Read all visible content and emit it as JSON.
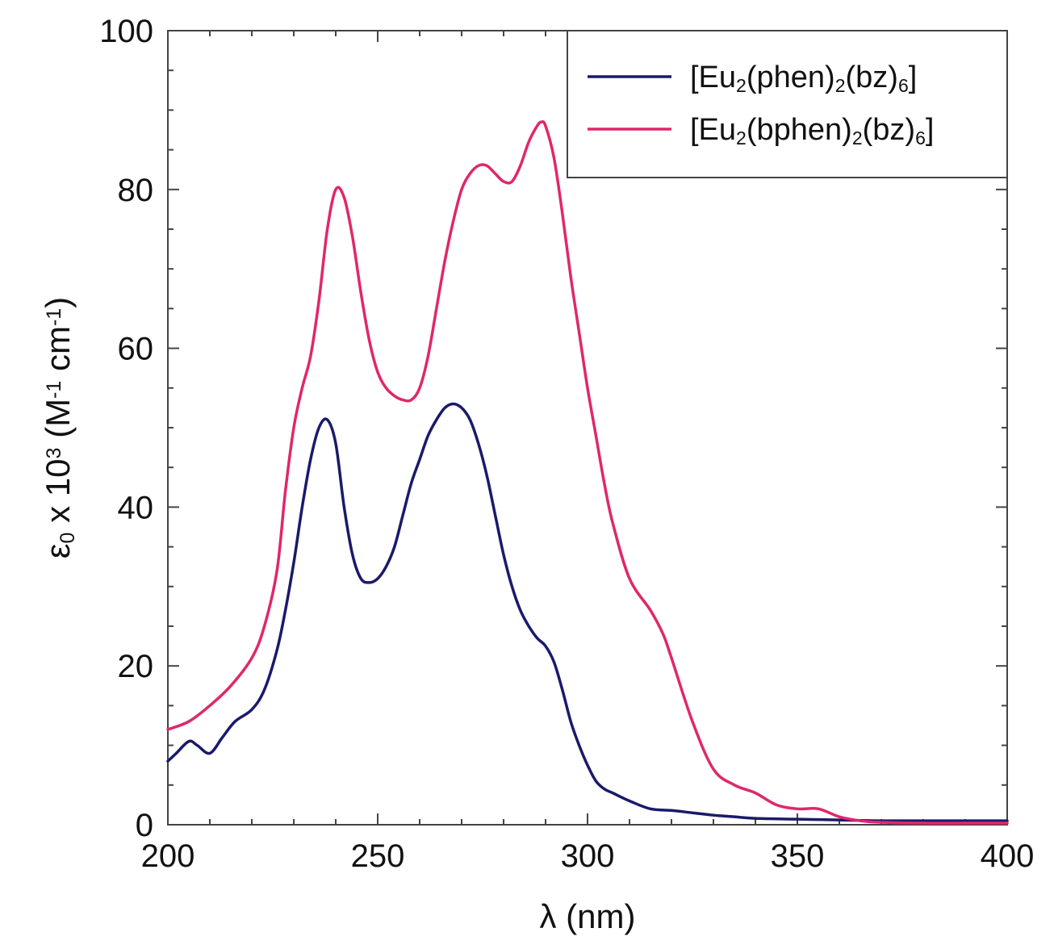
{
  "chart_data": {
    "type": "line",
    "title": "",
    "xlabel": "λ (nm)",
    "ylabel": {
      "parts": [
        {
          "text": "ε",
          "style": "normal"
        },
        {
          "text": "0",
          "style": "sub"
        },
        {
          "text": " x 10",
          "style": "normal"
        },
        {
          "text": "3",
          "style": "sup"
        },
        {
          "text": " (M",
          "style": "normal"
        },
        {
          "text": "-1",
          "style": "sup"
        },
        {
          "text": " cm",
          "style": "normal"
        },
        {
          "text": "-1",
          "style": "sup"
        },
        {
          "text": ")",
          "style": "normal"
        }
      ]
    },
    "xlim": [
      200,
      400
    ],
    "ylim": [
      0,
      100
    ],
    "xticks": [
      200,
      250,
      300,
      350,
      400
    ],
    "yticks": [
      0,
      20,
      40,
      60,
      80,
      100
    ],
    "xtick_labels": [
      "200",
      "250",
      "300",
      "350",
      "400"
    ],
    "ytick_labels": [
      "0",
      "20",
      "40",
      "60",
      "80",
      "100"
    ],
    "grid": false,
    "legend_position": "top-right",
    "series": [
      {
        "name_parts": [
          {
            "text": "[Eu",
            "style": "normal"
          },
          {
            "text": "2",
            "style": "sub"
          },
          {
            "text": "(phen)",
            "style": "normal"
          },
          {
            "text": "2",
            "style": "sub"
          },
          {
            "text": "(bz)",
            "style": "normal"
          },
          {
            "text": "6",
            "style": "sub"
          },
          {
            "text": "]",
            "style": "normal"
          }
        ],
        "color": "#1a1a6b",
        "x": [
          200,
          202,
          205,
          207,
          210,
          213,
          216,
          220,
          223,
          226,
          228,
          230,
          232,
          234,
          236,
          238,
          240,
          242,
          244,
          246,
          248,
          250,
          252,
          254,
          256,
          258,
          260,
          262,
          264,
          266,
          268,
          270,
          272,
          274,
          276,
          278,
          280,
          282,
          284,
          286,
          288,
          290,
          292,
          294,
          296,
          298,
          300,
          302,
          304,
          306,
          310,
          315,
          320,
          325,
          330,
          335,
          340,
          350,
          360,
          370,
          380,
          390,
          400
        ],
        "y": [
          8,
          9,
          10.5,
          10,
          9,
          11,
          13,
          14.5,
          17,
          22,
          27,
          33,
          40,
          46,
          50,
          51,
          48,
          40,
          34,
          31,
          30.5,
          31,
          32.5,
          35,
          39,
          43,
          46,
          49,
          51,
          52.5,
          53,
          52.5,
          51,
          48,
          44,
          39,
          34,
          30,
          27,
          25,
          23.5,
          22.5,
          20.5,
          17,
          13,
          10,
          7.5,
          5.5,
          4.5,
          4,
          3,
          2,
          1.8,
          1.5,
          1.2,
          1,
          0.8,
          0.7,
          0.6,
          0.5,
          0.5,
          0.5,
          0.5
        ]
      },
      {
        "name_parts": [
          {
            "text": "[Eu",
            "style": "normal"
          },
          {
            "text": "2",
            "style": "sub"
          },
          {
            "text": "(bphen)",
            "style": "normal"
          },
          {
            "text": "2",
            "style": "sub"
          },
          {
            "text": "(bz)",
            "style": "normal"
          },
          {
            "text": "6",
            "style": "sub"
          },
          {
            "text": "]",
            "style": "normal"
          }
        ],
        "color": "#e0276a",
        "x": [
          200,
          205,
          210,
          215,
          220,
          223,
          226,
          228,
          230,
          232,
          234,
          236,
          238,
          240,
          242,
          244,
          246,
          248,
          250,
          252,
          254,
          256,
          258,
          260,
          262,
          264,
          266,
          268,
          270,
          272,
          274,
          276,
          278,
          280,
          282,
          284,
          286,
          288,
          289,
          290,
          292,
          294,
          296,
          298,
          300,
          302,
          304,
          306,
          310,
          315,
          318,
          320,
          325,
          330,
          335,
          340,
          345,
          350,
          355,
          360,
          365,
          370,
          380,
          390,
          400
        ],
        "y": [
          12,
          13,
          15,
          17.5,
          21,
          25,
          32,
          42,
          50,
          55,
          59,
          66,
          75,
          80,
          79,
          74,
          67,
          61,
          57,
          55,
          54,
          53.5,
          53.5,
          55,
          59,
          65,
          71,
          76,
          80,
          82,
          83,
          83,
          82,
          81,
          81,
          83,
          86,
          88,
          88.5,
          88,
          84,
          77,
          69,
          62,
          55,
          49,
          43,
          38,
          31,
          27,
          24,
          21,
          13,
          7,
          5,
          4,
          2.5,
          2,
          2,
          1,
          0.5,
          0.3,
          0.2,
          0.2,
          0.2
        ]
      }
    ]
  }
}
